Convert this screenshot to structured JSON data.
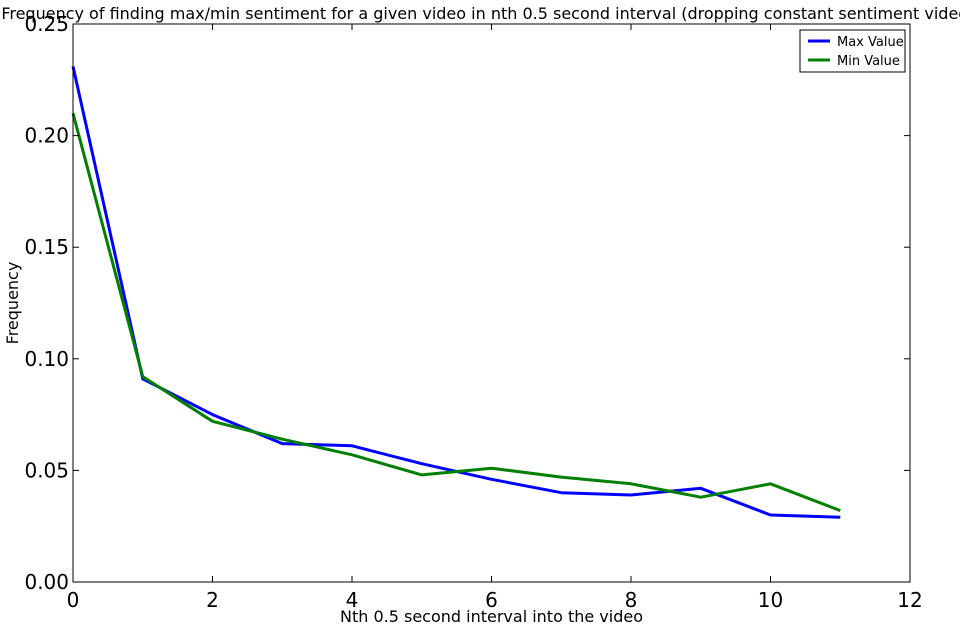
{
  "chart_data": {
    "type": "line",
    "title": "Frequency of finding max/min sentiment for a given video in nth 0.5 second interval (dropping constant sentiment videos)",
    "xlabel": "Nth 0.5 second interval into the video",
    "ylabel": "Frequency",
    "xlim": [
      0,
      12
    ],
    "ylim": [
      0,
      0.25
    ],
    "x_ticks": [
      0,
      2,
      4,
      6,
      8,
      10,
      12
    ],
    "x_tick_labels": [
      "0",
      "2",
      "4",
      "6",
      "8",
      "10",
      "12"
    ],
    "y_ticks": [
      0,
      0.05,
      0.1,
      0.15,
      0.2,
      0.25
    ],
    "y_tick_labels": [
      "0.00",
      "0.05",
      "0.10",
      "0.15",
      "0.20",
      "0.25"
    ],
    "grid": false,
    "legend_position": "top-right",
    "x": [
      0,
      1,
      2,
      3,
      4,
      5,
      6,
      7,
      8,
      9,
      10,
      11
    ],
    "series": [
      {
        "name": "Max Value",
        "color": "#0000ff",
        "values": [
          0.231,
          0.091,
          0.075,
          0.062,
          0.061,
          0.053,
          0.046,
          0.04,
          0.039,
          0.042,
          0.03,
          0.029
        ]
      },
      {
        "name": "Min Value",
        "color": "#008000",
        "values": [
          0.21,
          0.092,
          0.072,
          0.064,
          0.057,
          0.048,
          0.051,
          0.047,
          0.044,
          0.038,
          0.044,
          0.032
        ]
      }
    ]
  }
}
